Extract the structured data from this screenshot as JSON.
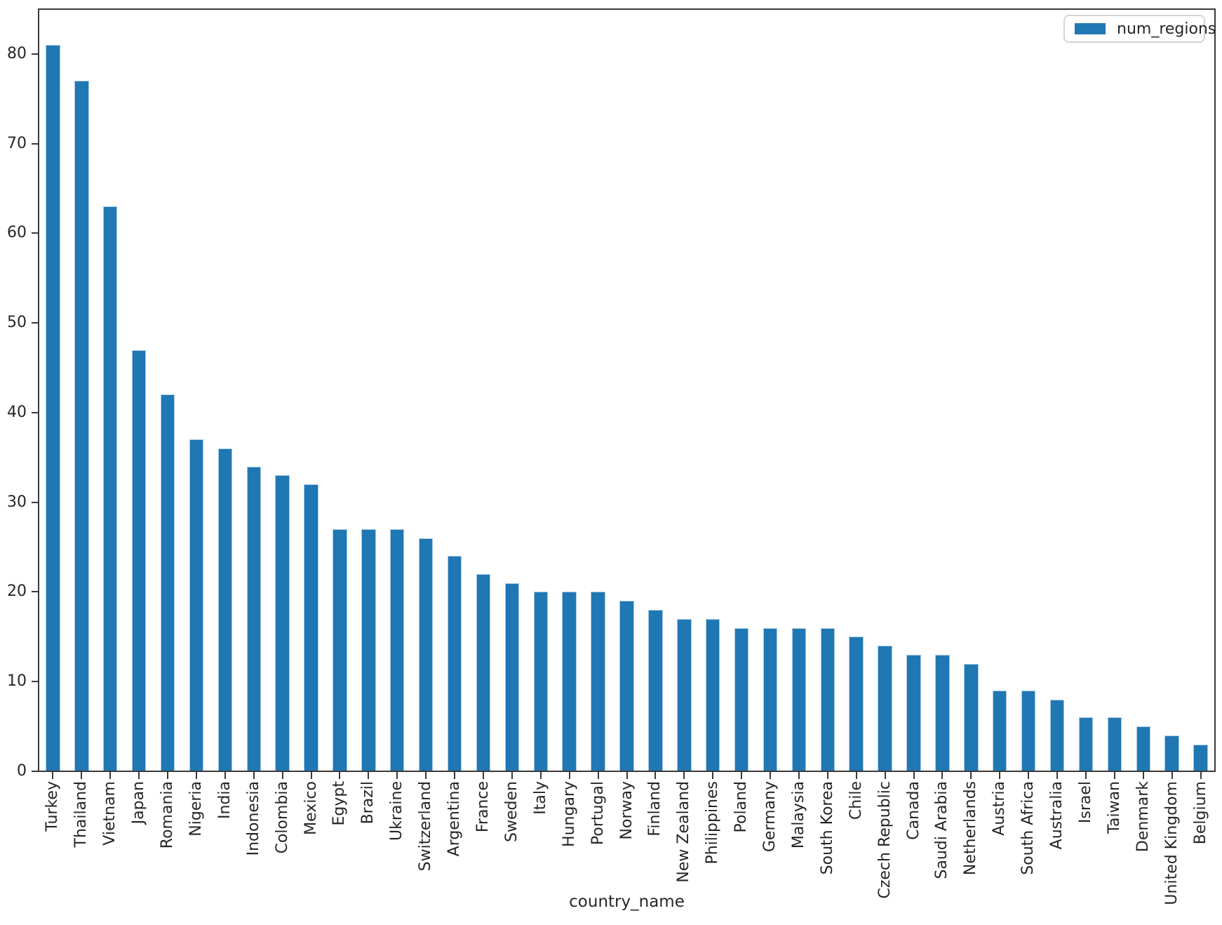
{
  "chart_data": {
    "type": "bar",
    "title": "",
    "xlabel": "country_name",
    "ylabel": "",
    "legend": {
      "label": "num_regions",
      "position": "upper right"
    },
    "bar_color": "#1f77b4",
    "bar_edge_color": "#a9c9e6",
    "grid": false,
    "ylim": [
      0,
      85
    ],
    "yticks": [
      0,
      10,
      20,
      30,
      40,
      50,
      60,
      70,
      80
    ],
    "categories": [
      "Turkey",
      "Thailand",
      "Vietnam",
      "Japan",
      "Romania",
      "Nigeria",
      "India",
      "Indonesia",
      "Colombia",
      "Mexico",
      "Egypt",
      "Brazil",
      "Ukraine",
      "Switzerland",
      "Argentina",
      "France",
      "Sweden",
      "Italy",
      "Hungary",
      "Portugal",
      "Norway",
      "Finland",
      "New Zealand",
      "Philippines",
      "Poland",
      "Germany",
      "Malaysia",
      "South Korea",
      "Chile",
      "Czech Republic",
      "Canada",
      "Saudi Arabia",
      "Netherlands",
      "Austria",
      "South Africa",
      "Australia",
      "Israel",
      "Taiwan",
      "Denmark",
      "United Kingdom",
      "Belgium"
    ],
    "series": [
      {
        "name": "num_regions",
        "values": [
          81,
          77,
          63,
          47,
          42,
          37,
          36,
          34,
          33,
          32,
          27,
          27,
          27,
          26,
          24,
          22,
          21,
          20,
          20,
          20,
          19,
          18,
          17,
          17,
          16,
          16,
          16,
          16,
          15,
          14,
          13,
          13,
          12,
          9,
          9,
          8,
          6,
          6,
          5,
          4,
          3
        ]
      }
    ]
  }
}
